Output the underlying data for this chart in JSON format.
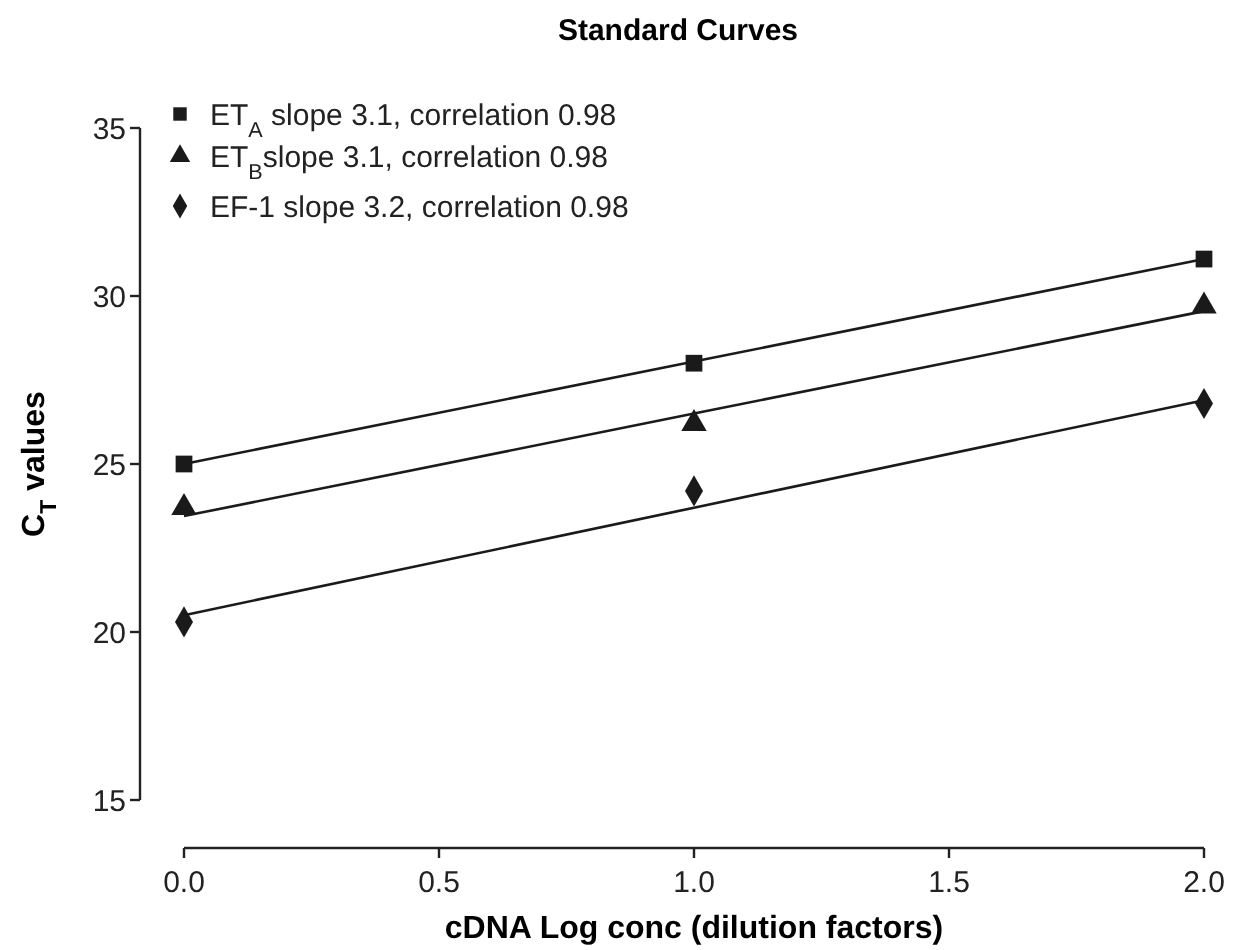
{
  "chart_data": {
    "type": "scatter",
    "title": "Standard Curves",
    "xlabel": "cDNA Log conc (dilution factors)",
    "ylabel": "C$_{T}$ values",
    "x": [
      0,
      1,
      2
    ],
    "xlim": [
      0,
      2
    ],
    "xticks": [
      {
        "value": 0,
        "label": "0.0"
      },
      0.5,
      {
        "value": 1,
        "label": "1.0"
      },
      1.5,
      {
        "value": 2,
        "label": "2.0"
      }
    ],
    "ylim": [
      15,
      35
    ],
    "yticks": [
      15,
      20,
      25,
      30,
      35
    ],
    "grid": false,
    "legend": "top left",
    "series": [
      {
        "name": "ET$_{A}$ slope 3.1, correlation 0.98",
        "color": "#1a1a1a",
        "marker": "square",
        "values": [
          25.0,
          28.0,
          31.1
        ]
      },
      {
        "name": "ET$_{B}$slope 3.1, correlation 0.98",
        "color": "#1a1a1a",
        "marker": "triangle",
        "values": [
          23.7,
          26.2,
          29.7
        ]
      },
      {
        "name": "EF-1 slope 3.2, correlation 0.98",
        "color": "#1a1a1a",
        "marker": "diamond",
        "values": [
          20.3,
          24.2,
          26.8
        ]
      },
      {
        "type": "line",
        "color": "#1a1a1a",
        "x": [
          0,
          1,
          2
        ],
        "values": [
          25.0,
          28.05,
          31.1
        ]
      },
      {
        "type": "line",
        "color": "#1a1a1a",
        "x": [
          0,
          1,
          2
        ],
        "values": [
          23.45,
          26.5,
          29.55
        ]
      },
      {
        "type": "line",
        "color": "#1a1a1a",
        "x": [
          0,
          1,
          2
        ],
        "values": [
          20.5,
          23.7,
          26.9
        ]
      }
    ]
  }
}
